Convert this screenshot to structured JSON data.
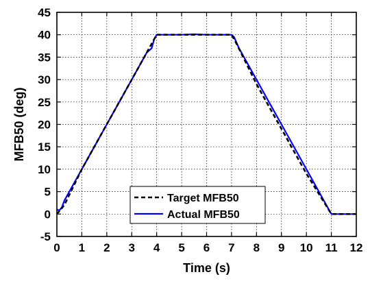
{
  "chart_data": {
    "type": "line",
    "title": "",
    "xlabel": "Time (s)",
    "ylabel": "MFB50 (deg)",
    "xlim": [
      0,
      12
    ],
    "ylim": [
      -5,
      45
    ],
    "xticks": [
      "0",
      "1",
      "2",
      "3",
      "4",
      "5",
      "6",
      "7",
      "8",
      "9",
      "10",
      "11",
      "12"
    ],
    "yticks": [
      "-5",
      "0",
      "5",
      "10",
      "15",
      "20",
      "25",
      "30",
      "35",
      "40",
      "45"
    ],
    "grid": true,
    "legend_position": "bottom-center",
    "series": [
      {
        "name": "Target MFB50",
        "color": "#000000",
        "style": "dashed",
        "x": [
          0,
          0.15,
          0.3,
          1,
          2,
          3,
          3.7,
          4.0,
          5,
          6,
          7.0,
          7.2,
          8,
          9,
          10,
          11.0,
          11.1,
          12
        ],
        "y": [
          0,
          1,
          2,
          10,
          20,
          30,
          37,
          40,
          40,
          40,
          40,
          38,
          29,
          19,
          9,
          0,
          0,
          0
        ]
      },
      {
        "name": "Actual MFB50",
        "color": "#0000ff",
        "style": "solid",
        "x": [
          0,
          0.1,
          0.2,
          0.3,
          0.4,
          1,
          2,
          3,
          3.6,
          3.8,
          3.9,
          4.0,
          4.5,
          5,
          5.5,
          6,
          6.5,
          7.0,
          7.1,
          7.3,
          8,
          9,
          10,
          10.5,
          11.0,
          11.2,
          12
        ],
        "y": [
          1,
          0.8,
          1.5,
          3,
          4,
          10,
          20,
          30,
          36,
          37,
          39,
          40,
          40,
          40,
          40.1,
          40,
          40,
          40,
          39.5,
          37,
          30,
          20,
          10,
          5,
          0,
          0,
          0
        ]
      }
    ]
  }
}
